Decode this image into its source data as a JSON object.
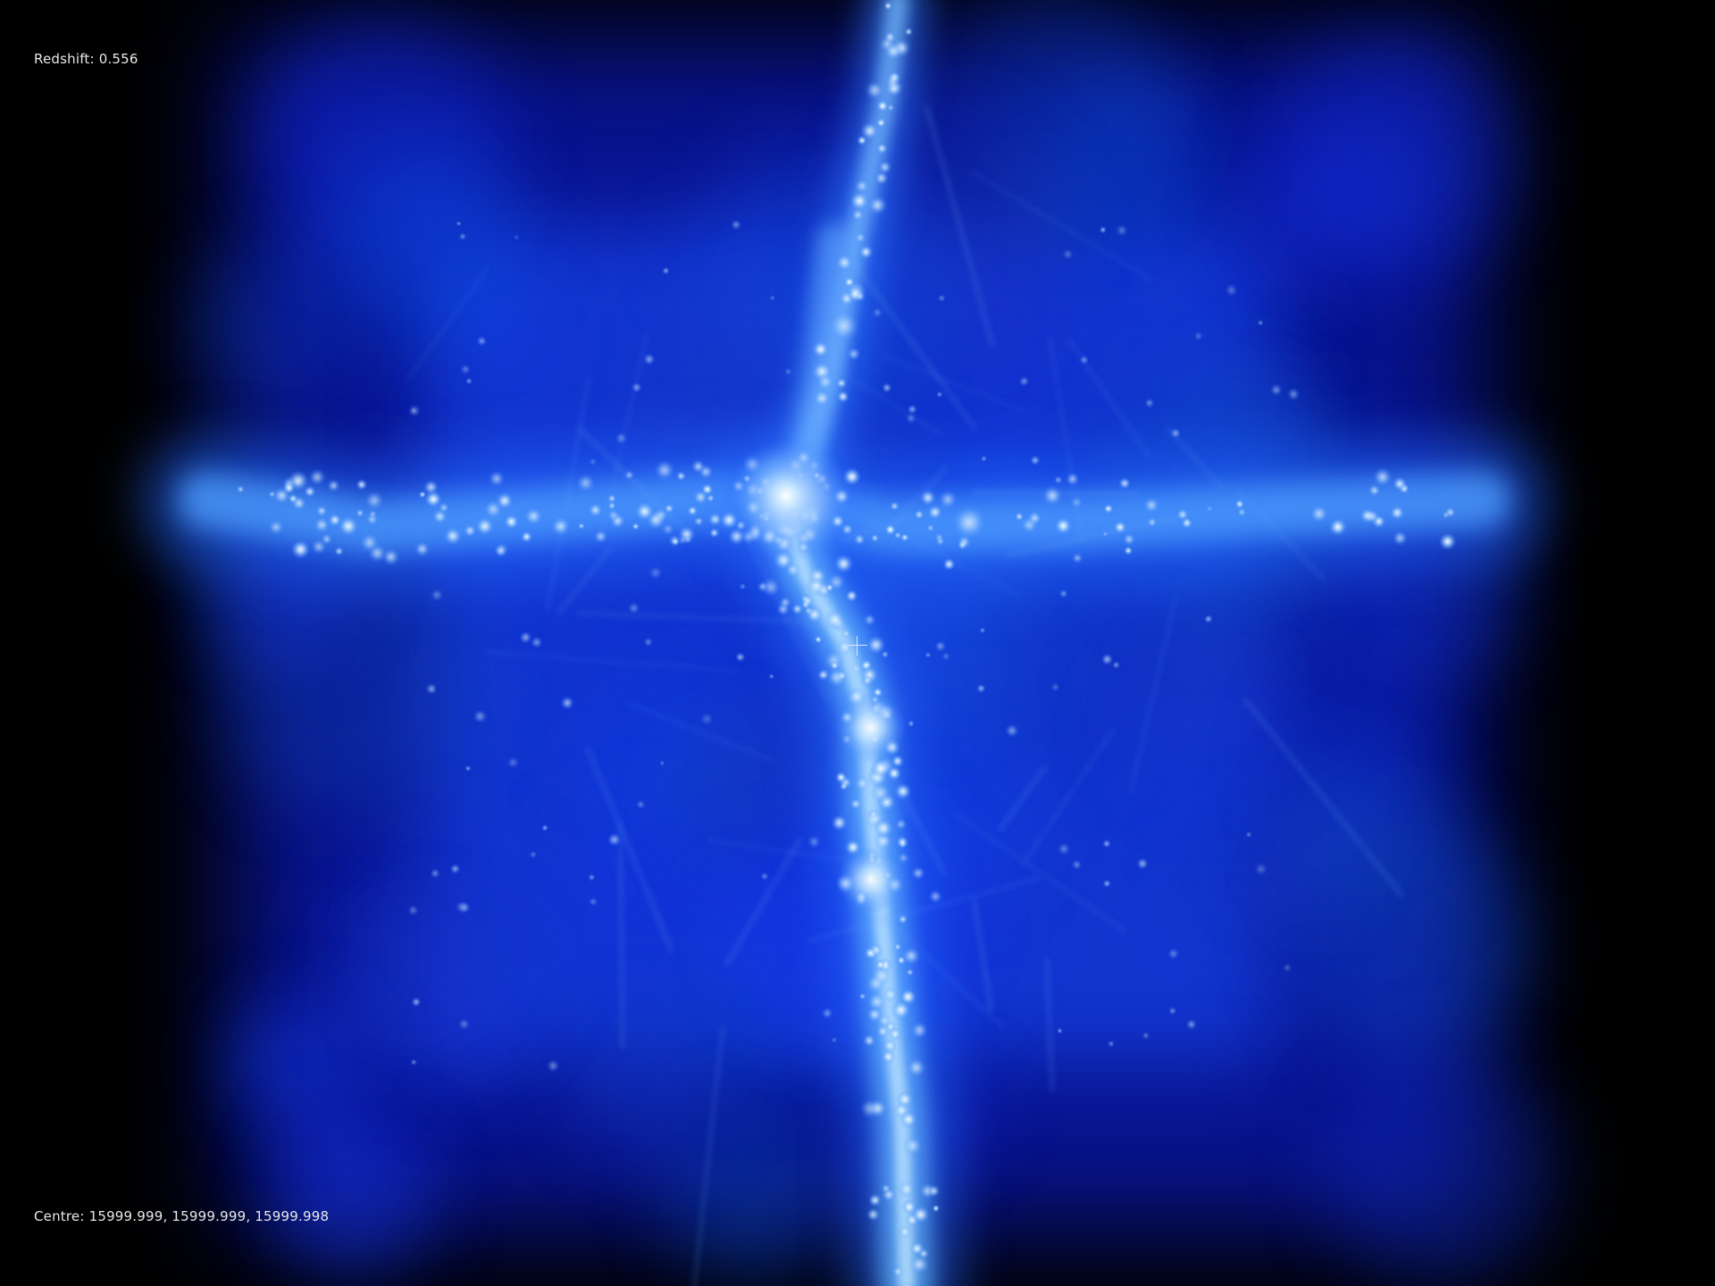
{
  "viewer": {
    "redshift_text": "Redshift: 0.556",
    "centre_text": "Centre: 15999.999, 15999.999, 15999.998"
  },
  "colors": {
    "background": "#000000",
    "halo": "#0a1ea8",
    "filament": "#2a6cff",
    "core": "#ffffff",
    "text": "#e8e8e8"
  },
  "icons": {
    "crosshair": "crosshair-icon"
  }
}
